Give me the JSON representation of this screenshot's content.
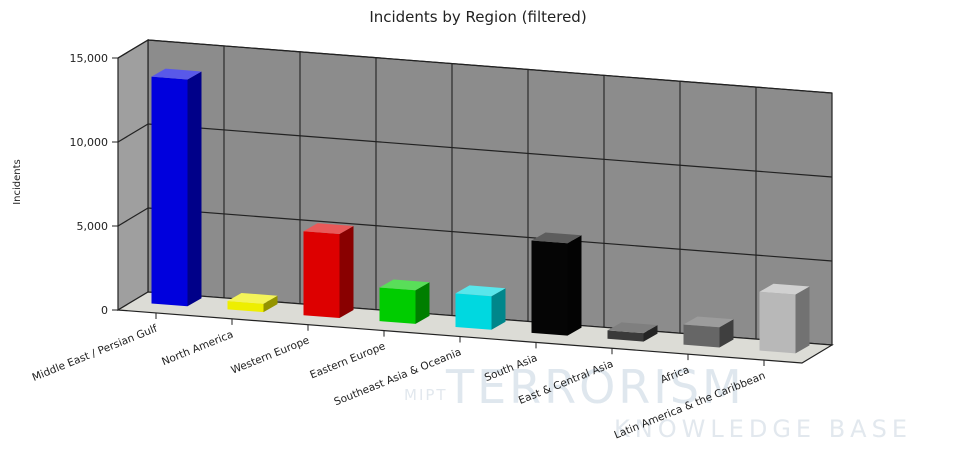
{
  "chart_data": {
    "type": "bar",
    "title": "Incidents by Region (filtered)",
    "ylabel": "Incidents",
    "xlabel": "",
    "ylim": [
      0,
      15000
    ],
    "y_ticks": [
      "0",
      "5,000",
      "10,000",
      "15,000"
    ],
    "grid": true,
    "three_d": true,
    "categories": [
      "Middle East / Persian Gulf",
      "North America",
      "Western Europe",
      "Eastern Europe",
      "Southeast Asia & Oceania",
      "South Asia",
      "East & Central Asia",
      "Africa",
      "Latin America & the Caribbean"
    ],
    "values": [
      13500,
      500,
      5000,
      2000,
      2000,
      5500,
      500,
      1200,
      3500
    ],
    "colors": [
      "#0000dd",
      "#eeee00",
      "#dd0000",
      "#00cc00",
      "#00d8e0",
      "#050505",
      "#3a3a3a",
      "#666666",
      "#b8b8b8"
    ]
  },
  "watermark": {
    "prefix": "MIPT",
    "main": "TERRORISM",
    "sub": "KNOWLEDGE BASE"
  }
}
